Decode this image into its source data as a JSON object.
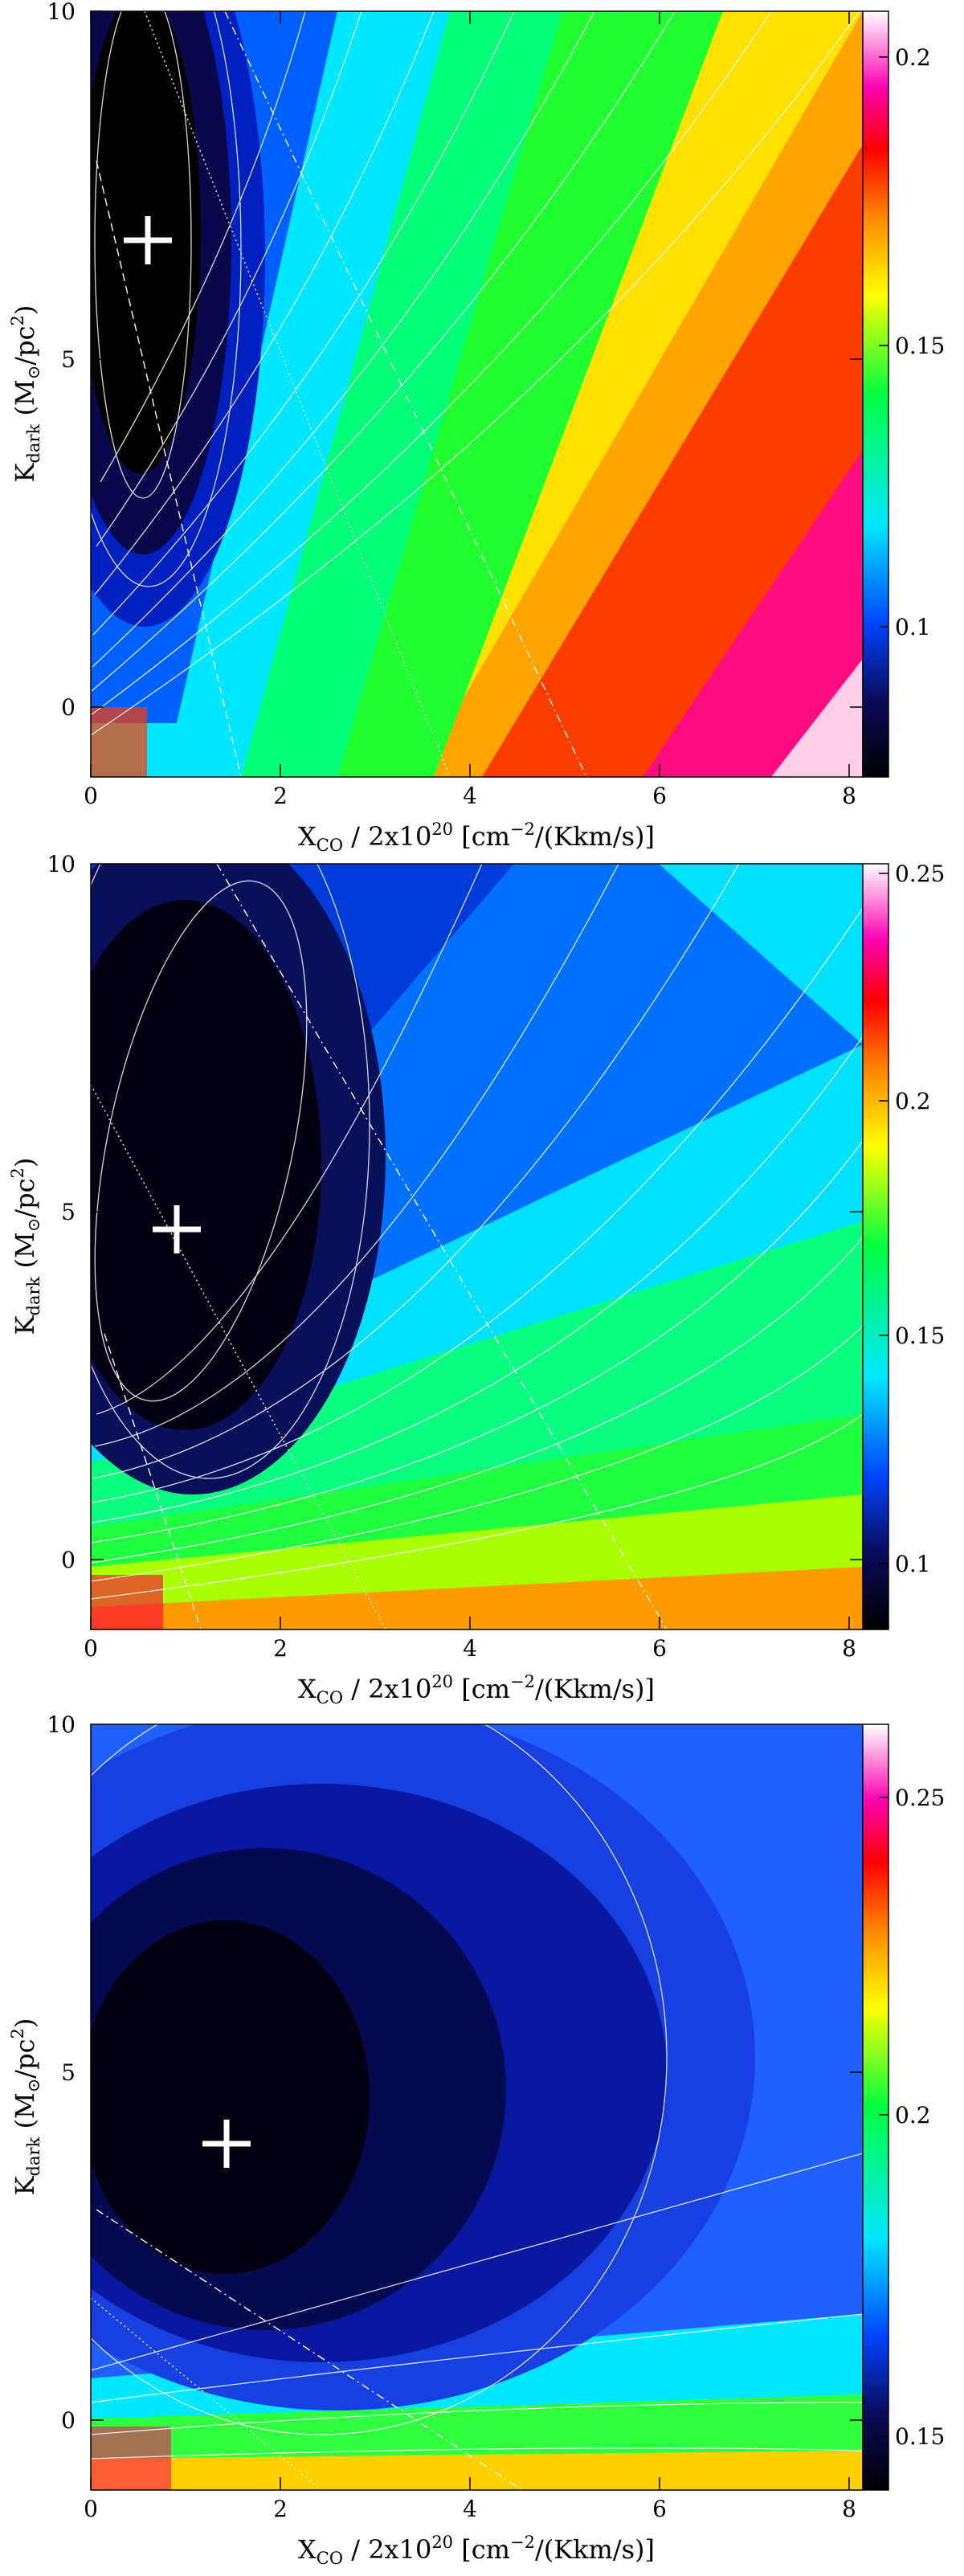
{
  "chart_data": [
    {
      "type": "heatmap",
      "xlabel": {
        "main": "X",
        "sub": "CO",
        "rest": " / 2x10",
        "sup": "20",
        "tail": " [cm",
        "sup2": "−2",
        "tail2": "/(Kkm/s)]"
      },
      "ylabel": {
        "main": "K",
        "sub": "dark",
        "rest": " (M",
        "sub2": "⊙",
        "rest2": "/pc",
        "sup": "2",
        "tail": ")"
      },
      "xlim": [
        0,
        8.4
      ],
      "ylim": [
        -1,
        10
      ],
      "x_ticks": [
        "0",
        "2",
        "4",
        "6",
        "8"
      ],
      "y_ticks": [
        "0",
        "5",
        "10"
      ],
      "colorbar": {
        "range": [
          0.07,
          0.215
        ],
        "ticks": [
          "0.1",
          "0.15",
          "0.2"
        ]
      },
      "best_fit_marker": {
        "x": 0.6,
        "y": 6.7
      }
    },
    {
      "type": "heatmap",
      "xlabel": {
        "main": "X",
        "sub": "CO",
        "rest": " / 2x10",
        "sup": "20",
        "tail": " [cm",
        "sup2": "−2",
        "tail2": "/(Kkm/s)]"
      },
      "ylabel": {
        "main": "K",
        "sub": "dark",
        "rest": " (M",
        "sub2": "⊙",
        "rest2": "/pc",
        "sup": "2",
        "tail": ")"
      },
      "xlim": [
        0,
        8.4
      ],
      "ylim": [
        -1,
        10
      ],
      "x_ticks": [
        "0",
        "2",
        "4",
        "6",
        "8"
      ],
      "y_ticks": [
        "0",
        "5",
        "10"
      ],
      "colorbar": {
        "range": [
          0.082,
          0.25
        ],
        "ticks": [
          "0.1",
          "0.15",
          "0.2",
          "0.25"
        ]
      },
      "best_fit_marker": {
        "x": 0.9,
        "y": 4.9
      }
    },
    {
      "type": "heatmap",
      "xlabel": {
        "main": "X",
        "sub": "CO",
        "rest": " / 2x10",
        "sup": "20",
        "tail": " [cm",
        "sup2": "−2",
        "tail2": "/(Kkm/s)]"
      },
      "ylabel": {
        "main": "K",
        "sub": "dark",
        "rest": " (M",
        "sub2": "⊙",
        "rest2": "/pc",
        "sup": "2",
        "tail": ")"
      },
      "xlim": [
        0,
        8.4
      ],
      "ylim": [
        -1,
        10
      ],
      "x_ticks": [
        "0",
        "2",
        "4",
        "6",
        "8"
      ],
      "y_ticks": [
        "0",
        "5",
        "10"
      ],
      "colorbar": {
        "range": [
          0.135,
          0.258
        ],
        "ticks": [
          "0.15",
          "0.2",
          "0.25"
        ]
      },
      "best_fit_marker": {
        "x": 1.4,
        "y": 4.0
      }
    }
  ]
}
